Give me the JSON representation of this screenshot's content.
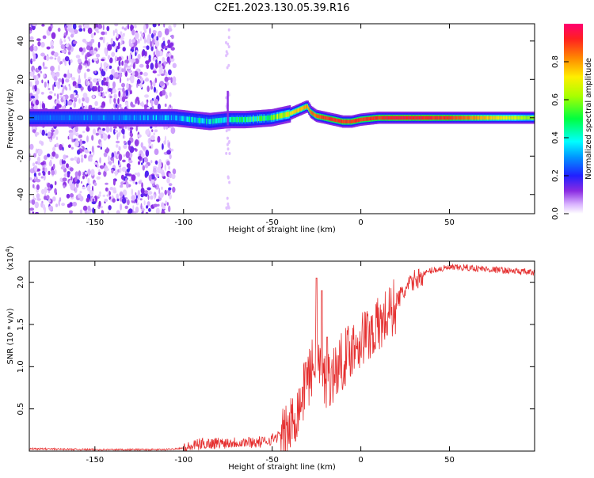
{
  "title": "C2E1.2023.130.05.39.R16",
  "chart_data": [
    {
      "type": "heatmap",
      "xlabel": "Height of straight line (km)",
      "ylabel": "Frequency (Hz)",
      "xlim": [
        -187,
        98
      ],
      "ylim": [
        -50,
        49
      ],
      "xticks": [
        -150,
        -100,
        -50,
        0,
        50
      ],
      "yticks": [
        -40,
        -20,
        0,
        20,
        40
      ],
      "ridge": {
        "x": [
          -187,
          -160,
          -140,
          -120,
          -105,
          -95,
          -85,
          -75,
          -65,
          -50,
          -40,
          -35,
          -30,
          -28,
          -25,
          -20,
          -15,
          -10,
          -5,
          0,
          10,
          20,
          50,
          98
        ],
        "y": [
          0,
          0,
          0,
          0,
          0,
          -1,
          -2,
          -1,
          -1,
          0,
          2,
          4,
          6,
          3,
          1,
          0,
          -1,
          -2,
          -2,
          -1,
          0,
          0,
          0,
          0
        ],
        "amplitude": [
          0.2,
          0.2,
          0.2,
          0.25,
          0.3,
          0.35,
          0.35,
          0.4,
          0.45,
          0.55,
          0.7,
          0.75,
          0.8,
          0.85,
          0.85,
          0.9,
          0.9,
          0.9,
          0.9,
          0.9,
          0.9,
          0.95,
          0.9,
          0.6
        ]
      },
      "noise_region_x": [
        -187,
        -105
      ],
      "colorbar": {
        "label": "Normalized spectral amplitude",
        "range": [
          0,
          1
        ],
        "ticks": [
          "0.0",
          "0.2",
          "0.4",
          "0.6",
          "0.8"
        ]
      }
    },
    {
      "type": "line",
      "xlabel": "Height of straight line (km)",
      "ylabel": "SNR (10 * v/v)",
      "scale_note": "(x10",
      "scale_exp": "4",
      "scale_close": ")",
      "xlim": [
        -187,
        98
      ],
      "ylim": [
        0,
        2.25
      ],
      "xticks": [
        -150,
        -100,
        -50,
        0,
        50
      ],
      "yticks": [
        "0.5",
        "1.0",
        "1.5",
        "2.0"
      ],
      "color": "#e53030",
      "envelope": {
        "x": [
          -187,
          -150,
          -110,
          -100,
          -90,
          -70,
          -55,
          -45,
          -40,
          -35,
          -30,
          -25,
          -22,
          -20,
          -15,
          -10,
          -5,
          0,
          10,
          20,
          30,
          40,
          50,
          60,
          80,
          98
        ],
        "y": [
          0.03,
          0.02,
          0.02,
          0.04,
          0.1,
          0.12,
          0.12,
          0.2,
          0.35,
          0.6,
          0.9,
          1.2,
          1.0,
          0.9,
          1.0,
          1.15,
          1.3,
          1.4,
          1.55,
          1.8,
          2.05,
          2.15,
          2.18,
          2.18,
          2.15,
          2.12
        ]
      },
      "spikes": [
        {
          "x": -25,
          "y": 2.05
        },
        {
          "x": -22,
          "y": 1.9
        },
        {
          "x": -19,
          "y": 1.35
        },
        {
          "x": -31,
          "y": 1.05
        }
      ]
    }
  ]
}
